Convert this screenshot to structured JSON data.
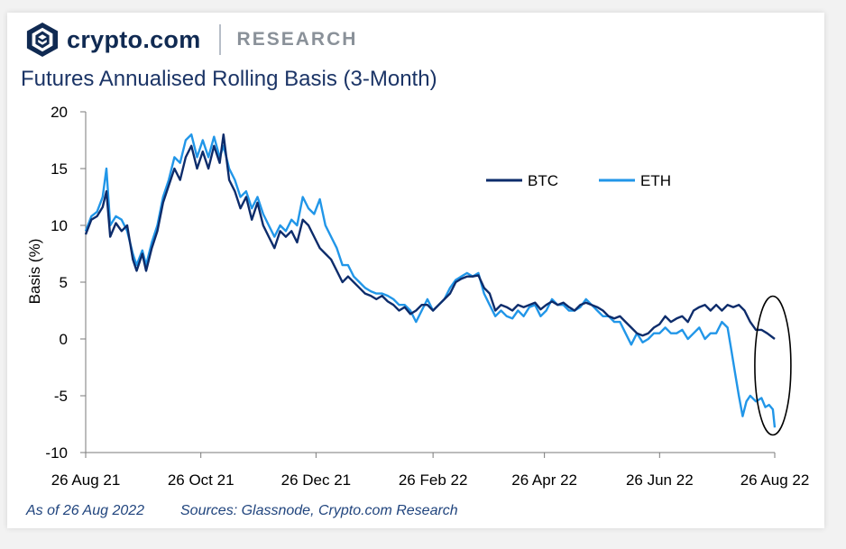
{
  "brand": {
    "name": "crypto.com",
    "section": "RESEARCH"
  },
  "chart_data": {
    "type": "line",
    "title": "Futures Annualised Rolling Basis (3-Month)",
    "xlabel": "",
    "ylabel": "Basis (%)",
    "ylim": [
      -10,
      20
    ],
    "yticks": [
      20,
      15,
      10,
      5,
      0,
      -5,
      -10
    ],
    "xlim": [
      "2021-08-26",
      "2022-08-26"
    ],
    "xticks": [
      {
        "date": "2021-08-26",
        "label": "26 Aug 21"
      },
      {
        "date": "2021-10-26",
        "label": "26 Oct 21"
      },
      {
        "date": "2021-12-26",
        "label": "26 Dec 21"
      },
      {
        "date": "2022-02-26",
        "label": "26 Feb 22"
      },
      {
        "date": "2022-04-26",
        "label": "26 Apr 22"
      },
      {
        "date": "2022-06-26",
        "label": "26 Jun 22"
      },
      {
        "date": "2022-08-26",
        "label": "26 Aug 22"
      }
    ],
    "grid": false,
    "legend": "top-right",
    "annotation": "ellipse highlighting latest values",
    "series": [
      {
        "name": "BTC",
        "color": "#0d2c6b",
        "points": [
          [
            "2021-08-26",
            9.2
          ],
          [
            "2021-08-29",
            10.5
          ],
          [
            "2021-09-01",
            10.8
          ],
          [
            "2021-09-04",
            11.6
          ],
          [
            "2021-09-06",
            13.0
          ],
          [
            "2021-09-08",
            9.0
          ],
          [
            "2021-09-11",
            10.2
          ],
          [
            "2021-09-14",
            9.5
          ],
          [
            "2021-09-17",
            10.0
          ],
          [
            "2021-09-20",
            7.0
          ],
          [
            "2021-09-22",
            6.0
          ],
          [
            "2021-09-25",
            7.5
          ],
          [
            "2021-09-27",
            6.0
          ],
          [
            "2021-09-30",
            8.0
          ],
          [
            "2021-10-03",
            9.5
          ],
          [
            "2021-10-06",
            12.0
          ],
          [
            "2021-10-09",
            13.5
          ],
          [
            "2021-10-12",
            15.0
          ],
          [
            "2021-10-15",
            14.0
          ],
          [
            "2021-10-18",
            16.0
          ],
          [
            "2021-10-21",
            17.0
          ],
          [
            "2021-10-24",
            15.0
          ],
          [
            "2021-10-27",
            16.5
          ],
          [
            "2021-10-30",
            15.0
          ],
          [
            "2021-11-02",
            17.0
          ],
          [
            "2021-11-05",
            15.5
          ],
          [
            "2021-11-07",
            18.0
          ],
          [
            "2021-11-10",
            14.0
          ],
          [
            "2021-11-13",
            13.0
          ],
          [
            "2021-11-16",
            11.5
          ],
          [
            "2021-11-19",
            12.5
          ],
          [
            "2021-11-22",
            10.5
          ],
          [
            "2021-11-25",
            12.0
          ],
          [
            "2021-11-28",
            10.0
          ],
          [
            "2021-12-01",
            9.0
          ],
          [
            "2021-12-04",
            8.0
          ],
          [
            "2021-12-07",
            9.5
          ],
          [
            "2021-12-10",
            9.0
          ],
          [
            "2021-12-13",
            9.5
          ],
          [
            "2021-12-16",
            8.5
          ],
          [
            "2021-12-19",
            10.5
          ],
          [
            "2021-12-22",
            10.0
          ],
          [
            "2021-12-25",
            9.0
          ],
          [
            "2021-12-28",
            8.0
          ],
          [
            "2021-12-31",
            7.5
          ],
          [
            "2022-01-03",
            7.0
          ],
          [
            "2022-01-06",
            6.0
          ],
          [
            "2022-01-09",
            5.0
          ],
          [
            "2022-01-12",
            5.5
          ],
          [
            "2022-01-15",
            5.0
          ],
          [
            "2022-01-18",
            4.5
          ],
          [
            "2022-01-21",
            4.0
          ],
          [
            "2022-01-24",
            3.8
          ],
          [
            "2022-01-27",
            3.5
          ],
          [
            "2022-01-30",
            3.8
          ],
          [
            "2022-02-02",
            3.3
          ],
          [
            "2022-02-05",
            3.0
          ],
          [
            "2022-02-08",
            2.5
          ],
          [
            "2022-02-11",
            2.8
          ],
          [
            "2022-02-14",
            2.2
          ],
          [
            "2022-02-17",
            2.5
          ],
          [
            "2022-02-20",
            3.0
          ],
          [
            "2022-02-23",
            3.0
          ],
          [
            "2022-02-26",
            2.5
          ],
          [
            "2022-03-01",
            3.0
          ],
          [
            "2022-03-04",
            3.5
          ],
          [
            "2022-03-07",
            4.0
          ],
          [
            "2022-03-10",
            5.0
          ],
          [
            "2022-03-13",
            5.3
          ],
          [
            "2022-03-16",
            5.5
          ],
          [
            "2022-03-19",
            5.5
          ],
          [
            "2022-03-22",
            5.6
          ],
          [
            "2022-03-25",
            4.5
          ],
          [
            "2022-03-28",
            4.0
          ],
          [
            "2022-03-31",
            2.5
          ],
          [
            "2022-04-03",
            3.0
          ],
          [
            "2022-04-06",
            2.8
          ],
          [
            "2022-04-09",
            2.5
          ],
          [
            "2022-04-12",
            3.0
          ],
          [
            "2022-04-15",
            2.8
          ],
          [
            "2022-04-18",
            3.0
          ],
          [
            "2022-04-21",
            3.2
          ],
          [
            "2022-04-24",
            2.6
          ],
          [
            "2022-04-27",
            3.0
          ],
          [
            "2022-04-30",
            3.3
          ],
          [
            "2022-05-03",
            3.0
          ],
          [
            "2022-05-06",
            3.2
          ],
          [
            "2022-05-09",
            2.8
          ],
          [
            "2022-05-12",
            2.5
          ],
          [
            "2022-05-15",
            3.0
          ],
          [
            "2022-05-18",
            3.2
          ],
          [
            "2022-05-21",
            3.0
          ],
          [
            "2022-05-24",
            2.8
          ],
          [
            "2022-05-27",
            2.5
          ],
          [
            "2022-05-30",
            2.0
          ],
          [
            "2022-06-02",
            1.8
          ],
          [
            "2022-06-05",
            2.0
          ],
          [
            "2022-06-08",
            1.5
          ],
          [
            "2022-06-11",
            1.0
          ],
          [
            "2022-06-14",
            0.5
          ],
          [
            "2022-06-17",
            0.3
          ],
          [
            "2022-06-20",
            0.5
          ],
          [
            "2022-06-23",
            1.0
          ],
          [
            "2022-06-26",
            1.3
          ],
          [
            "2022-06-29",
            2.0
          ],
          [
            "2022-07-02",
            1.5
          ],
          [
            "2022-07-05",
            1.8
          ],
          [
            "2022-07-08",
            2.0
          ],
          [
            "2022-07-11",
            1.5
          ],
          [
            "2022-07-14",
            2.5
          ],
          [
            "2022-07-17",
            2.8
          ],
          [
            "2022-07-20",
            3.0
          ],
          [
            "2022-07-23",
            2.5
          ],
          [
            "2022-07-26",
            3.0
          ],
          [
            "2022-07-29",
            2.5
          ],
          [
            "2022-08-01",
            3.0
          ],
          [
            "2022-08-04",
            2.8
          ],
          [
            "2022-08-07",
            3.0
          ],
          [
            "2022-08-10",
            2.5
          ],
          [
            "2022-08-13",
            1.5
          ],
          [
            "2022-08-16",
            0.8
          ],
          [
            "2022-08-19",
            0.8
          ],
          [
            "2022-08-22",
            0.5
          ],
          [
            "2022-08-26",
            0.0
          ]
        ]
      },
      {
        "name": "ETH",
        "color": "#2196e8",
        "points": [
          [
            "2021-08-26",
            9.5
          ],
          [
            "2021-08-29",
            10.8
          ],
          [
            "2021-09-01",
            11.2
          ],
          [
            "2021-09-04",
            12.5
          ],
          [
            "2021-09-06",
            15.0
          ],
          [
            "2021-09-08",
            10.0
          ],
          [
            "2021-09-11",
            10.8
          ],
          [
            "2021-09-14",
            10.5
          ],
          [
            "2021-09-17",
            9.5
          ],
          [
            "2021-09-20",
            7.5
          ],
          [
            "2021-09-22",
            6.5
          ],
          [
            "2021-09-25",
            7.8
          ],
          [
            "2021-09-27",
            6.5
          ],
          [
            "2021-09-30",
            8.5
          ],
          [
            "2021-10-03",
            10.0
          ],
          [
            "2021-10-06",
            12.5
          ],
          [
            "2021-10-09",
            14.0
          ],
          [
            "2021-10-12",
            16.0
          ],
          [
            "2021-10-15",
            15.5
          ],
          [
            "2021-10-18",
            17.5
          ],
          [
            "2021-10-21",
            18.0
          ],
          [
            "2021-10-24",
            16.0
          ],
          [
            "2021-10-27",
            17.5
          ],
          [
            "2021-10-30",
            16.0
          ],
          [
            "2021-11-02",
            17.8
          ],
          [
            "2021-11-05",
            16.0
          ],
          [
            "2021-11-07",
            17.0
          ],
          [
            "2021-11-10",
            15.0
          ],
          [
            "2021-11-13",
            14.0
          ],
          [
            "2021-11-16",
            12.5
          ],
          [
            "2021-11-19",
            13.0
          ],
          [
            "2021-11-22",
            11.5
          ],
          [
            "2021-11-25",
            12.5
          ],
          [
            "2021-11-28",
            11.0
          ],
          [
            "2021-12-01",
            10.0
          ],
          [
            "2021-12-04",
            9.0
          ],
          [
            "2021-12-07",
            10.0
          ],
          [
            "2021-12-10",
            9.5
          ],
          [
            "2021-12-13",
            10.5
          ],
          [
            "2021-12-16",
            10.0
          ],
          [
            "2021-12-19",
            12.5
          ],
          [
            "2021-12-22",
            11.5
          ],
          [
            "2021-12-25",
            11.0
          ],
          [
            "2021-12-28",
            12.3
          ],
          [
            "2021-12-31",
            10.0
          ],
          [
            "2022-01-03",
            9.0
          ],
          [
            "2022-01-06",
            8.0
          ],
          [
            "2022-01-09",
            6.5
          ],
          [
            "2022-01-12",
            6.5
          ],
          [
            "2022-01-15",
            5.5
          ],
          [
            "2022-01-18",
            5.0
          ],
          [
            "2022-01-21",
            4.5
          ],
          [
            "2022-01-24",
            4.2
          ],
          [
            "2022-01-27",
            4.0
          ],
          [
            "2022-01-30",
            4.0
          ],
          [
            "2022-02-02",
            3.8
          ],
          [
            "2022-02-05",
            3.5
          ],
          [
            "2022-02-08",
            3.0
          ],
          [
            "2022-02-11",
            3.0
          ],
          [
            "2022-02-14",
            2.5
          ],
          [
            "2022-02-17",
            1.5
          ],
          [
            "2022-02-20",
            2.5
          ],
          [
            "2022-02-23",
            3.5
          ],
          [
            "2022-02-26",
            2.5
          ],
          [
            "2022-03-01",
            3.0
          ],
          [
            "2022-03-04",
            3.5
          ],
          [
            "2022-03-07",
            4.5
          ],
          [
            "2022-03-10",
            5.2
          ],
          [
            "2022-03-13",
            5.5
          ],
          [
            "2022-03-16",
            5.8
          ],
          [
            "2022-03-19",
            5.5
          ],
          [
            "2022-03-22",
            5.8
          ],
          [
            "2022-03-25",
            4.0
          ],
          [
            "2022-03-28",
            3.0
          ],
          [
            "2022-03-31",
            2.0
          ],
          [
            "2022-04-03",
            2.5
          ],
          [
            "2022-04-06",
            2.0
          ],
          [
            "2022-04-09",
            1.8
          ],
          [
            "2022-04-12",
            2.5
          ],
          [
            "2022-04-15",
            2.0
          ],
          [
            "2022-04-18",
            2.8
          ],
          [
            "2022-04-21",
            3.0
          ],
          [
            "2022-04-24",
            2.0
          ],
          [
            "2022-04-27",
            2.5
          ],
          [
            "2022-04-30",
            3.5
          ],
          [
            "2022-05-03",
            3.0
          ],
          [
            "2022-05-06",
            3.0
          ],
          [
            "2022-05-09",
            2.5
          ],
          [
            "2022-05-12",
            2.5
          ],
          [
            "2022-05-15",
            2.8
          ],
          [
            "2022-05-18",
            3.5
          ],
          [
            "2022-05-21",
            3.0
          ],
          [
            "2022-05-24",
            2.5
          ],
          [
            "2022-05-27",
            2.0
          ],
          [
            "2022-05-30",
            2.0
          ],
          [
            "2022-06-02",
            1.5
          ],
          [
            "2022-06-05",
            1.5
          ],
          [
            "2022-06-08",
            0.5
          ],
          [
            "2022-06-11",
            -0.5
          ],
          [
            "2022-06-14",
            0.5
          ],
          [
            "2022-06-17",
            -0.3
          ],
          [
            "2022-06-20",
            0.0
          ],
          [
            "2022-06-23",
            0.5
          ],
          [
            "2022-06-26",
            0.5
          ],
          [
            "2022-06-29",
            1.0
          ],
          [
            "2022-07-02",
            0.5
          ],
          [
            "2022-07-05",
            0.5
          ],
          [
            "2022-07-08",
            0.8
          ],
          [
            "2022-07-11",
            0.0
          ],
          [
            "2022-07-14",
            0.5
          ],
          [
            "2022-07-17",
            1.0
          ],
          [
            "2022-07-20",
            0.0
          ],
          [
            "2022-07-23",
            0.5
          ],
          [
            "2022-07-26",
            0.5
          ],
          [
            "2022-07-29",
            1.5
          ],
          [
            "2022-08-01",
            1.0
          ],
          [
            "2022-08-03",
            -1.0
          ],
          [
            "2022-08-05",
            -3.0
          ],
          [
            "2022-08-07",
            -5.0
          ],
          [
            "2022-08-09",
            -6.8
          ],
          [
            "2022-08-11",
            -5.5
          ],
          [
            "2022-08-13",
            -5.0
          ],
          [
            "2022-08-16",
            -5.5
          ],
          [
            "2022-08-19",
            -5.2
          ],
          [
            "2022-08-21",
            -6.0
          ],
          [
            "2022-08-23",
            -5.8
          ],
          [
            "2022-08-25",
            -6.2
          ],
          [
            "2022-08-26",
            -7.8
          ]
        ]
      }
    ]
  },
  "footer": {
    "as_of": "As of 26 Aug 2022",
    "sources": "Sources: Glassnode, Crypto.com Research"
  }
}
